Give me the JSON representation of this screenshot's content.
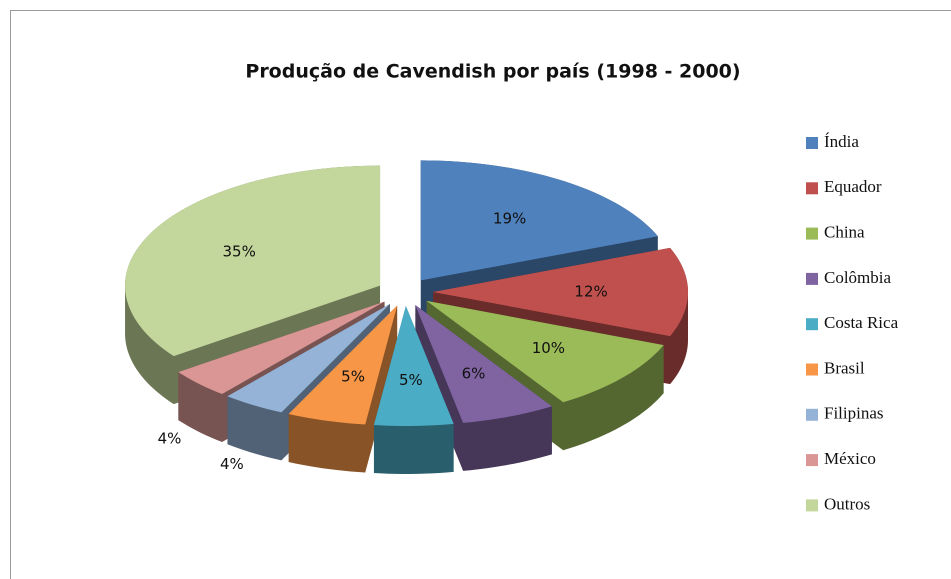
{
  "chart_data": {
    "type": "pie",
    "title": "Produção de Cavendish por país (1998 - 2000)",
    "categories": [
      "Índia",
      "Equador",
      "China",
      "Colômbia",
      "Costa Rica",
      "Brasil",
      "Filipinas",
      "México",
      "Outros"
    ],
    "values": [
      19,
      12,
      10,
      6,
      5,
      5,
      4,
      4,
      35
    ],
    "value_labels": [
      "19%",
      "12%",
      "10%",
      "6%",
      "5%",
      "5%",
      "4%",
      "4%",
      "35%"
    ],
    "colors": [
      "#4f81bd",
      "#c0504d",
      "#9bbb59",
      "#8064a2",
      "#4bacc6",
      "#f79646",
      "#95b3d7",
      "#d99694",
      "#c3d69b"
    ],
    "legend": "right"
  }
}
